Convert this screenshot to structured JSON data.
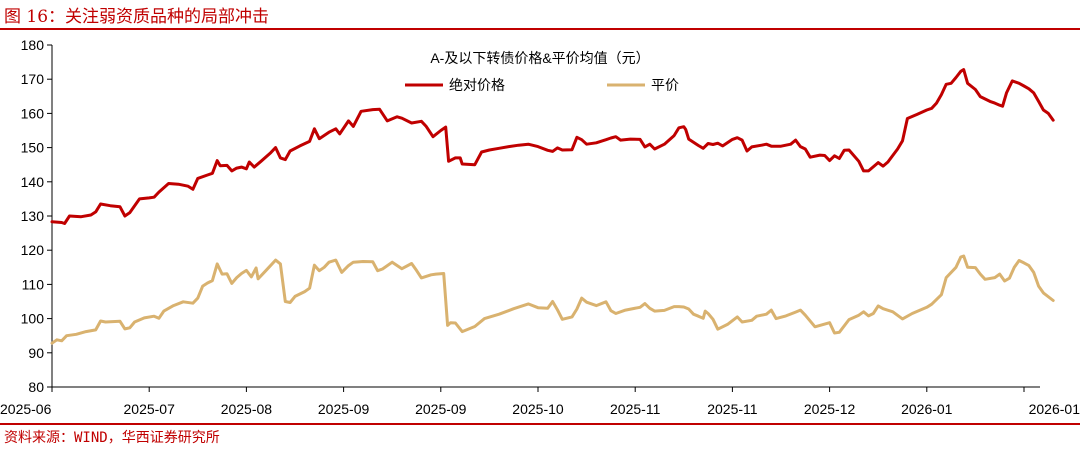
{
  "figure": {
    "title": "图 16：关注弱资质品种的局部冲击",
    "source": "资料来源：WIND，华西证券研究所"
  },
  "chart_data": {
    "type": "line",
    "title": "A-及以下转债价格&平价均值（元）",
    "xlabel": "",
    "ylabel": "",
    "ylim": [
      80,
      180
    ],
    "yticks": [
      80,
      90,
      100,
      110,
      120,
      130,
      140,
      150,
      160,
      170,
      180
    ],
    "xticks": [
      "2025-06",
      "2025-07",
      "2025-08",
      "2025-09",
      "2025-09",
      "2025-10",
      "2025-11",
      "2025-11",
      "2025-12",
      "2026-01",
      "2026-01"
    ],
    "xrange": [
      0,
      10.3
    ],
    "grid": false,
    "legend_position": "top-center",
    "series": [
      {
        "name": "绝对价格",
        "color": "#c00000",
        "points": [
          [
            0,
            128.3
          ],
          [
            0.1,
            128.1
          ],
          [
            0.13,
            127.8
          ],
          [
            0.18,
            130
          ],
          [
            0.3,
            129.8
          ],
          [
            0.4,
            130.3
          ],
          [
            0.45,
            131.2
          ],
          [
            0.5,
            133.5
          ],
          [
            0.6,
            133
          ],
          [
            0.7,
            132.7
          ],
          [
            0.75,
            130
          ],
          [
            0.8,
            131
          ],
          [
            0.9,
            135
          ],
          [
            1.0,
            135.3
          ],
          [
            1.05,
            135.5
          ],
          [
            1.1,
            137
          ],
          [
            1.2,
            139.5
          ],
          [
            1.3,
            139.3
          ],
          [
            1.4,
            138.7
          ],
          [
            1.45,
            137.8
          ],
          [
            1.5,
            141
          ],
          [
            1.6,
            142
          ],
          [
            1.65,
            142.5
          ],
          [
            1.7,
            146.2
          ],
          [
            1.73,
            144.7
          ],
          [
            1.8,
            144.8
          ],
          [
            1.85,
            143.2
          ],
          [
            1.9,
            144
          ],
          [
            1.95,
            144.3
          ],
          [
            2.0,
            143.8
          ],
          [
            2.03,
            145.8
          ],
          [
            2.08,
            144.3
          ],
          [
            2.15,
            146
          ],
          [
            2.25,
            148.5
          ],
          [
            2.3,
            150
          ],
          [
            2.35,
            147
          ],
          [
            2.4,
            146.5
          ],
          [
            2.45,
            149
          ],
          [
            2.55,
            150.5
          ],
          [
            2.65,
            151.8
          ],
          [
            2.7,
            155.5
          ],
          [
            2.75,
            152.6
          ],
          [
            2.85,
            154.5
          ],
          [
            2.92,
            155.5
          ],
          [
            2.96,
            154
          ],
          [
            3.05,
            157.8
          ],
          [
            3.1,
            156.2
          ],
          [
            3.18,
            160.6
          ],
          [
            3.3,
            161.1
          ],
          [
            3.37,
            161.2
          ],
          [
            3.45,
            157.8
          ],
          [
            3.55,
            159
          ],
          [
            3.6,
            158.6
          ],
          [
            3.7,
            157.2
          ],
          [
            3.8,
            157.7
          ],
          [
            3.85,
            156.2
          ],
          [
            3.92,
            153.2
          ],
          [
            4.0,
            155
          ],
          [
            4.05,
            156
          ],
          [
            4.08,
            146
          ],
          [
            4.15,
            147
          ],
          [
            4.2,
            147
          ],
          [
            4.22,
            145.2
          ],
          [
            4.35,
            145
          ],
          [
            4.42,
            148.7
          ],
          [
            4.5,
            149.3
          ],
          [
            4.6,
            149.8
          ],
          [
            4.7,
            150.3
          ],
          [
            4.8,
            150.7
          ],
          [
            4.9,
            151
          ],
          [
            5.0,
            150.3
          ],
          [
            5.1,
            149.2
          ],
          [
            5.15,
            148.9
          ],
          [
            5.2,
            149.9
          ],
          [
            5.25,
            149.3
          ],
          [
            5.35,
            149.4
          ],
          [
            5.4,
            153
          ],
          [
            5.45,
            152.3
          ],
          [
            5.5,
            151
          ],
          [
            5.6,
            151.4
          ],
          [
            5.7,
            152.3
          ],
          [
            5.75,
            152.8
          ],
          [
            5.8,
            153.2
          ],
          [
            5.85,
            152.2
          ],
          [
            5.95,
            152.5
          ],
          [
            6.05,
            152.4
          ],
          [
            6.1,
            150.2
          ],
          [
            6.15,
            151
          ],
          [
            6.2,
            149.6
          ],
          [
            6.3,
            151
          ],
          [
            6.4,
            153.5
          ],
          [
            6.45,
            155.8
          ],
          [
            6.5,
            156.1
          ],
          [
            6.52,
            155.3
          ],
          [
            6.55,
            152.5
          ],
          [
            6.65,
            150.6
          ],
          [
            6.7,
            149.8
          ],
          [
            6.75,
            151.2
          ],
          [
            6.8,
            150.9
          ],
          [
            6.85,
            151.3
          ],
          [
            6.9,
            150.5
          ],
          [
            7.0,
            152.4
          ],
          [
            7.05,
            152.9
          ],
          [
            7.1,
            152.2
          ],
          [
            7.15,
            149
          ],
          [
            7.2,
            150.2
          ],
          [
            7.3,
            150.7
          ],
          [
            7.35,
            151
          ],
          [
            7.4,
            150.4
          ],
          [
            7.5,
            150.4
          ],
          [
            7.6,
            151
          ],
          [
            7.65,
            152.2
          ],
          [
            7.7,
            150.3
          ],
          [
            7.75,
            149.6
          ],
          [
            7.8,
            147.2
          ],
          [
            7.9,
            147.8
          ],
          [
            7.95,
            147.7
          ],
          [
            8.0,
            146.2
          ],
          [
            8.05,
            147.6
          ],
          [
            8.1,
            146.8
          ],
          [
            8.15,
            149.2
          ],
          [
            8.2,
            149.3
          ],
          [
            8.3,
            146
          ],
          [
            8.35,
            143.2
          ],
          [
            8.4,
            143.2
          ],
          [
            8.5,
            145.6
          ],
          [
            8.55,
            144.6
          ],
          [
            8.6,
            145.8
          ],
          [
            8.7,
            149.6
          ],
          [
            8.75,
            152
          ],
          [
            8.8,
            158.5
          ],
          [
            8.9,
            159.7
          ],
          [
            9.0,
            161
          ],
          [
            9.05,
            161.5
          ],
          [
            9.1,
            163
          ],
          [
            9.15,
            165.5
          ],
          [
            9.2,
            168.5
          ],
          [
            9.25,
            168.8
          ],
          [
            9.3,
            170.5
          ],
          [
            9.35,
            172.3
          ],
          [
            9.38,
            172.8
          ],
          [
            9.42,
            168.8
          ],
          [
            9.5,
            167
          ],
          [
            9.55,
            164.9
          ],
          [
            9.65,
            163.5
          ],
          [
            9.7,
            163
          ],
          [
            9.75,
            162.4
          ],
          [
            9.78,
            162.1
          ],
          [
            9.82,
            166
          ],
          [
            9.88,
            169.5
          ],
          [
            9.95,
            168.8
          ],
          [
            10.0,
            168
          ],
          [
            10.05,
            167.2
          ],
          [
            10.1,
            166
          ],
          [
            10.15,
            163.5
          ],
          [
            10.2,
            161
          ],
          [
            10.25,
            160
          ],
          [
            10.3,
            158
          ]
        ]
      },
      {
        "name": "平价",
        "color": "#d9b26f",
        "points": [
          [
            0,
            92.8
          ],
          [
            0.05,
            93.8
          ],
          [
            0.1,
            93.5
          ],
          [
            0.15,
            95
          ],
          [
            0.25,
            95.4
          ],
          [
            0.35,
            96.2
          ],
          [
            0.45,
            96.7
          ],
          [
            0.5,
            99.3
          ],
          [
            0.55,
            99
          ],
          [
            0.7,
            99.2
          ],
          [
            0.75,
            97
          ],
          [
            0.8,
            97.3
          ],
          [
            0.85,
            99
          ],
          [
            0.95,
            100.2
          ],
          [
            1.05,
            100.7
          ],
          [
            1.1,
            100.1
          ],
          [
            1.15,
            102.2
          ],
          [
            1.25,
            103.8
          ],
          [
            1.35,
            104.9
          ],
          [
            1.45,
            104.5
          ],
          [
            1.5,
            106
          ],
          [
            1.55,
            109.5
          ],
          [
            1.6,
            110.4
          ],
          [
            1.65,
            111.1
          ],
          [
            1.7,
            116
          ],
          [
            1.75,
            113
          ],
          [
            1.8,
            113.1
          ],
          [
            1.85,
            110.3
          ],
          [
            1.9,
            112
          ],
          [
            1.95,
            113.2
          ],
          [
            2.0,
            114.1
          ],
          [
            2.05,
            112.2
          ],
          [
            2.1,
            114.8
          ],
          [
            2.12,
            111.6
          ],
          [
            2.2,
            114
          ],
          [
            2.3,
            117.1
          ],
          [
            2.35,
            116
          ],
          [
            2.4,
            105
          ],
          [
            2.45,
            104.7
          ],
          [
            2.5,
            106.5
          ],
          [
            2.6,
            107.9
          ],
          [
            2.65,
            108.9
          ],
          [
            2.7,
            115.6
          ],
          [
            2.75,
            114
          ],
          [
            2.8,
            115
          ],
          [
            2.85,
            116.5
          ],
          [
            2.92,
            117.1
          ],
          [
            2.98,
            113.5
          ],
          [
            3.05,
            115.5
          ],
          [
            3.1,
            116.5
          ],
          [
            3.2,
            116.7
          ],
          [
            3.3,
            116.6
          ],
          [
            3.35,
            114
          ],
          [
            3.4,
            114.5
          ],
          [
            3.5,
            116.5
          ],
          [
            3.6,
            114.6
          ],
          [
            3.7,
            116.1
          ],
          [
            3.75,
            114.1
          ],
          [
            3.8,
            111.9
          ],
          [
            3.9,
            112.8
          ],
          [
            3.95,
            113
          ],
          [
            4.03,
            113.2
          ],
          [
            4.07,
            98
          ],
          [
            4.1,
            98.8
          ],
          [
            4.15,
            98.7
          ],
          [
            4.22,
            96.2
          ],
          [
            4.35,
            97.7
          ],
          [
            4.45,
            100
          ],
          [
            4.6,
            101.3
          ],
          [
            4.75,
            102.9
          ],
          [
            4.9,
            104.3
          ],
          [
            5.0,
            103.2
          ],
          [
            5.1,
            103
          ],
          [
            5.15,
            105
          ],
          [
            5.2,
            102.6
          ],
          [
            5.25,
            99.8
          ],
          [
            5.35,
            100.5
          ],
          [
            5.4,
            102.8
          ],
          [
            5.45,
            106
          ],
          [
            5.5,
            104.8
          ],
          [
            5.6,
            103.8
          ],
          [
            5.7,
            104.9
          ],
          [
            5.75,
            102.3
          ],
          [
            5.8,
            101.5
          ],
          [
            5.9,
            102.5
          ],
          [
            6.05,
            103.3
          ],
          [
            6.1,
            104.4
          ],
          [
            6.15,
            103
          ],
          [
            6.2,
            102.2
          ],
          [
            6.3,
            102.4
          ],
          [
            6.4,
            103.5
          ],
          [
            6.45,
            103.5
          ],
          [
            6.5,
            103.4
          ],
          [
            6.55,
            102.8
          ],
          [
            6.6,
            101.3
          ],
          [
            6.65,
            100.7
          ],
          [
            6.7,
            100.1
          ],
          [
            6.72,
            102.2
          ],
          [
            6.75,
            101.5
          ],
          [
            6.8,
            99.8
          ],
          [
            6.85,
            96.9
          ],
          [
            6.95,
            98.3
          ],
          [
            7.05,
            100.5
          ],
          [
            7.1,
            99
          ],
          [
            7.2,
            99.5
          ],
          [
            7.25,
            100.7
          ],
          [
            7.35,
            101.3
          ],
          [
            7.4,
            102.5
          ],
          [
            7.45,
            100
          ],
          [
            7.55,
            100.8
          ],
          [
            7.65,
            101.9
          ],
          [
            7.7,
            102.5
          ],
          [
            7.75,
            101
          ],
          [
            7.85,
            97.6
          ],
          [
            8.0,
            98.8
          ],
          [
            8.05,
            95.8
          ],
          [
            8.1,
            96
          ],
          [
            8.2,
            99.7
          ],
          [
            8.3,
            101
          ],
          [
            8.35,
            102
          ],
          [
            8.4,
            100.8
          ],
          [
            8.45,
            101.5
          ],
          [
            8.5,
            103.7
          ],
          [
            8.55,
            102.9
          ],
          [
            8.65,
            102
          ],
          [
            8.75,
            99.9
          ],
          [
            8.85,
            101.5
          ],
          [
            9.0,
            103.3
          ],
          [
            9.05,
            104.2
          ],
          [
            9.15,
            107
          ],
          [
            9.2,
            112
          ],
          [
            9.3,
            115
          ],
          [
            9.35,
            118
          ],
          [
            9.38,
            118.3
          ],
          [
            9.42,
            115
          ],
          [
            9.5,
            114.9
          ],
          [
            9.55,
            113
          ],
          [
            9.6,
            111.5
          ],
          [
            9.7,
            112
          ],
          [
            9.75,
            113
          ],
          [
            9.8,
            111
          ],
          [
            9.85,
            111.8
          ],
          [
            9.9,
            115
          ],
          [
            9.95,
            117
          ],
          [
            10.0,
            116.3
          ],
          [
            10.05,
            115.5
          ],
          [
            10.1,
            113.5
          ],
          [
            10.15,
            109.5
          ],
          [
            10.2,
            107.5
          ],
          [
            10.3,
            105.3
          ]
        ]
      }
    ]
  }
}
